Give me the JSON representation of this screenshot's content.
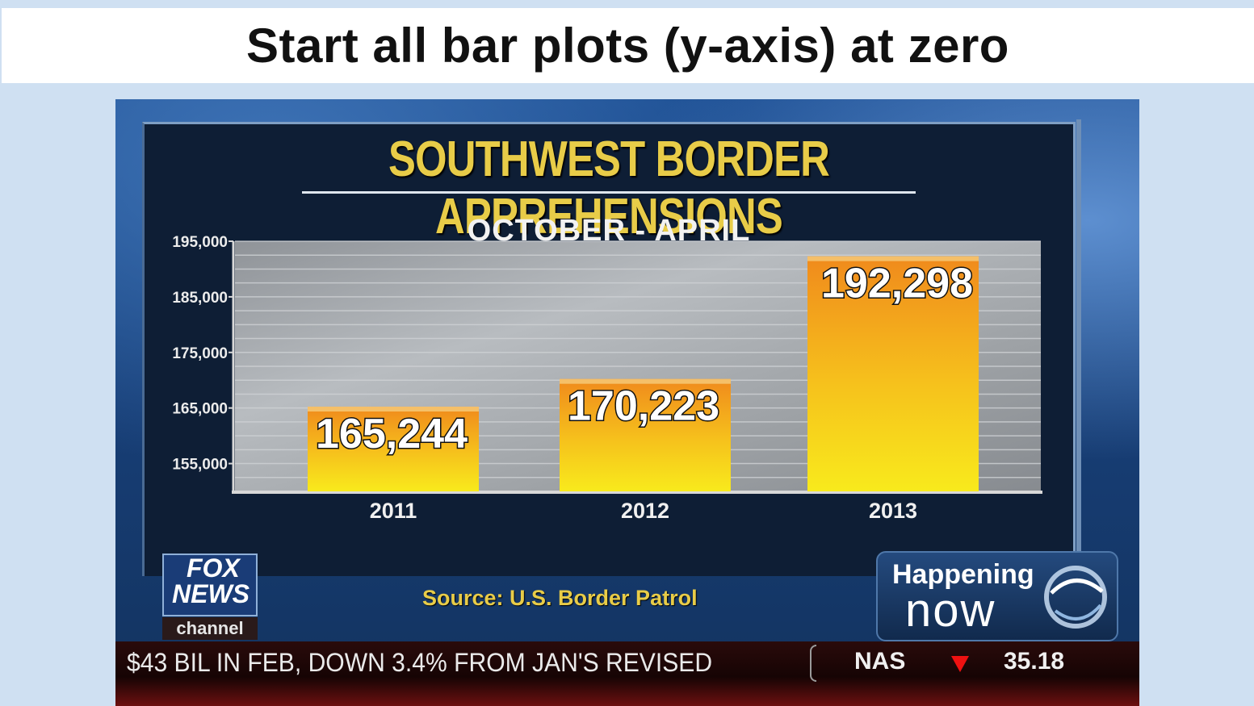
{
  "slide": {
    "title": "Start all bar plots (y-axis) at zero"
  },
  "broadcast": {
    "source": "Source: U.S. Border Patrol",
    "logo": {
      "line1": "FOX",
      "line2": "NEWS",
      "line3": "channel"
    },
    "badge": {
      "line1": "Happening",
      "line2": "now"
    },
    "ticker": {
      "text": "$43 BIL IN FEB, DOWN 3.4% FROM JAN'S REVISED",
      "index": "NAS",
      "value": "35.18"
    },
    "colors": {
      "title": "#e8cc48",
      "bar_top": "#f09020",
      "bar_bottom": "#f7e81a",
      "ticker_arrow": "#ee1111"
    }
  },
  "chart_data": {
    "type": "bar",
    "title": "SOUTHWEST BORDER APPREHENSIONS",
    "subtitle": "OCTOBER - APRIL",
    "categories": [
      "2011",
      "2012",
      "2013"
    ],
    "values": [
      165244,
      170223,
      192298
    ],
    "value_labels": [
      "165,244",
      "170,223",
      "192,298"
    ],
    "ylim": [
      150000,
      195000
    ],
    "yticks": [
      155000,
      165000,
      175000,
      185000,
      195000
    ],
    "ytick_labels": [
      "155,000",
      "165,000",
      "175,000",
      "185,000",
      "195,000"
    ],
    "xlabel": "",
    "ylabel": "",
    "grid": true
  }
}
